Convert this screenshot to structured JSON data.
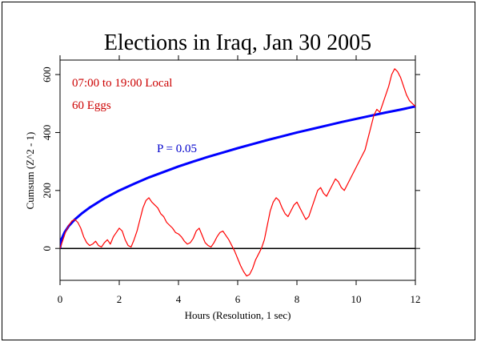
{
  "chart_data": {
    "type": "line",
    "title": "Elections in Iraq, Jan 30 2005",
    "xlabel": "Hours (Resolution, 1 sec)",
    "ylabel": "Cumsum (Z^2 - 1)",
    "xlim": [
      0,
      12
    ],
    "ylim": [
      -110,
      650
    ],
    "xticks": [
      0,
      2,
      4,
      6,
      8,
      10,
      12
    ],
    "yticks": [
      0,
      200,
      400,
      600
    ],
    "annotations": [
      "07:00 to 19:00 Local",
      "60 Eggs"
    ],
    "colors": {
      "cumsum": "#ff0000",
      "envelope": "#0000ff",
      "baseline": "#000000",
      "annotation": "#cc0000"
    },
    "series": [
      {
        "color": "#ff0000",
        "x": [
          0,
          0.1,
          0.2,
          0.3,
          0.4,
          0.5,
          0.6,
          0.7,
          0.8,
          0.9,
          1.0,
          1.1,
          1.2,
          1.3,
          1.4,
          1.5,
          1.6,
          1.7,
          1.8,
          1.9,
          2.0,
          2.1,
          2.2,
          2.3,
          2.4,
          2.5,
          2.6,
          2.7,
          2.8,
          2.9,
          3.0,
          3.1,
          3.2,
          3.3,
          3.4,
          3.5,
          3.6,
          3.7,
          3.8,
          3.9,
          4.0,
          4.1,
          4.2,
          4.3,
          4.4,
          4.5,
          4.6,
          4.7,
          4.8,
          4.9,
          5.0,
          5.1,
          5.2,
          5.3,
          5.4,
          5.5,
          5.6,
          5.7,
          5.8,
          5.9,
          6.0,
          6.1,
          6.2,
          6.3,
          6.4,
          6.5,
          6.6,
          6.7,
          6.8,
          6.9,
          7.0,
          7.1,
          7.2,
          7.3,
          7.4,
          7.5,
          7.6,
          7.7,
          7.8,
          7.9,
          8.0,
          8.1,
          8.2,
          8.3,
          8.4,
          8.5,
          8.6,
          8.7,
          8.8,
          8.9,
          9.0,
          9.1,
          9.2,
          9.3,
          9.4,
          9.5,
          9.6,
          9.7,
          9.8,
          9.9,
          10.0,
          10.1,
          10.2,
          10.3,
          10.4,
          10.5,
          10.6,
          10.7,
          10.8,
          10.9,
          11.0,
          11.1,
          11.2,
          11.3,
          11.4,
          11.5,
          11.6,
          11.7,
          11.8,
          11.9,
          12.0
        ],
        "values": [
          0,
          30,
          60,
          80,
          95,
          100,
          90,
          70,
          40,
          20,
          10,
          15,
          25,
          10,
          5,
          20,
          30,
          15,
          40,
          55,
          70,
          60,
          30,
          10,
          5,
          30,
          60,
          100,
          140,
          165,
          175,
          160,
          150,
          140,
          120,
          110,
          90,
          80,
          70,
          55,
          50,
          40,
          25,
          15,
          20,
          35,
          60,
          70,
          45,
          20,
          10,
          5,
          20,
          40,
          55,
          60,
          45,
          30,
          10,
          -10,
          -35,
          -60,
          -80,
          -95,
          -90,
          -70,
          -40,
          -20,
          0,
          30,
          80,
          130,
          160,
          175,
          165,
          140,
          120,
          110,
          130,
          150,
          160,
          140,
          120,
          100,
          110,
          140,
          170,
          200,
          210,
          190,
          180,
          200,
          220,
          240,
          230,
          210,
          200,
          220,
          240,
          260,
          280,
          300,
          320,
          340,
          380,
          420,
          460,
          480,
          470,
          500,
          530,
          560,
          600,
          620,
          610,
          590,
          560,
          530,
          510,
          500,
          490
        ],
        "endpoint_labels": []
      },
      {
        "color": "#0000ff",
        "label": "P = 0.05",
        "x": [
          0,
          0.05,
          0.15,
          0.3,
          0.5,
          0.75,
          1.0,
          1.5,
          2.0,
          2.5,
          3.0,
          3.5,
          4.0,
          4.5,
          5.0,
          5.5,
          6.0,
          6.5,
          7.0,
          7.5,
          8.0,
          8.5,
          9.0,
          9.5,
          10.0,
          10.5,
          11.0,
          11.5,
          12.0
        ],
        "values": [
          0,
          32,
          55,
          78,
          100,
          122,
          141,
          173,
          200,
          223,
          245,
          264,
          283,
          300,
          316,
          331,
          346,
          360,
          374,
          387,
          400,
          412,
          424,
          436,
          447,
          458,
          469,
          479,
          490
        ]
      },
      {
        "color": "#000000",
        "x": [
          0,
          12
        ],
        "values": [
          0,
          0
        ]
      }
    ]
  }
}
